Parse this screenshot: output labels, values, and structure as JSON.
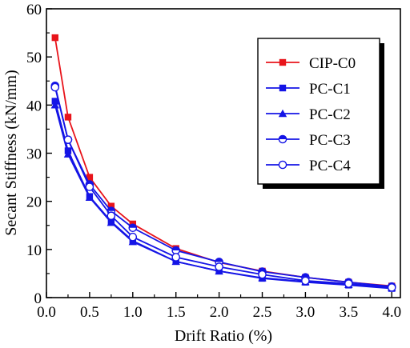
{
  "chart_data": {
    "type": "line",
    "xlabel": "Drift Ratio (%)",
    "ylabel": "Secant Stiffness (kN/mm)",
    "xlim": [
      0,
      4.1
    ],
    "ylim": [
      0,
      60
    ],
    "xticks": [
      "0.0",
      "0.5",
      "1.0",
      "1.5",
      "2.0",
      "2.5",
      "3.0",
      "3.5",
      "4.0"
    ],
    "xtick_values": [
      0,
      0.5,
      1,
      1.5,
      2,
      2.5,
      3,
      3.5,
      4
    ],
    "yticks": [
      "0",
      "10",
      "20",
      "30",
      "40",
      "50",
      "60"
    ],
    "ytick_values": [
      0,
      10,
      20,
      30,
      40,
      50,
      60
    ],
    "grid": false,
    "legend_position": "upper-right",
    "x": [
      0.1,
      0.25,
      0.5,
      0.75,
      1.0,
      1.5,
      2.0,
      2.5,
      3.0,
      3.5,
      4.0
    ],
    "series": [
      {
        "name": "CIP-C0",
        "color": "#e8141b",
        "marker": "square",
        "values": [
          54.0,
          37.5,
          25.0,
          19.0,
          15.3,
          10.2,
          7.3,
          5.5,
          4.2,
          3.2,
          2.4
        ]
      },
      {
        "name": "PC-C1",
        "color": "#1414e6",
        "marker": "square",
        "values": [
          40.8,
          30.5,
          21.0,
          15.8,
          11.8,
          7.5,
          5.5,
          4.0,
          3.2,
          2.6,
          1.9
        ]
      },
      {
        "name": "PC-C2",
        "color": "#1414e6",
        "marker": "triangle",
        "values": [
          40.0,
          29.8,
          20.8,
          15.6,
          11.6,
          7.5,
          5.5,
          4.1,
          3.3,
          2.7,
          2.0
        ]
      },
      {
        "name": "PC-C3",
        "color": "#1414e6",
        "marker": "half-circle",
        "values": [
          44.0,
          32.8,
          23.5,
          18.0,
          14.5,
          9.8,
          7.4,
          5.4,
          4.2,
          3.2,
          2.3
        ]
      },
      {
        "name": "PC-C4",
        "color": "#1414e6",
        "marker": "open-circle",
        "values": [
          43.7,
          32.8,
          23.0,
          17.0,
          12.6,
          8.4,
          6.4,
          4.8,
          3.5,
          2.9,
          2.1
        ]
      }
    ]
  }
}
